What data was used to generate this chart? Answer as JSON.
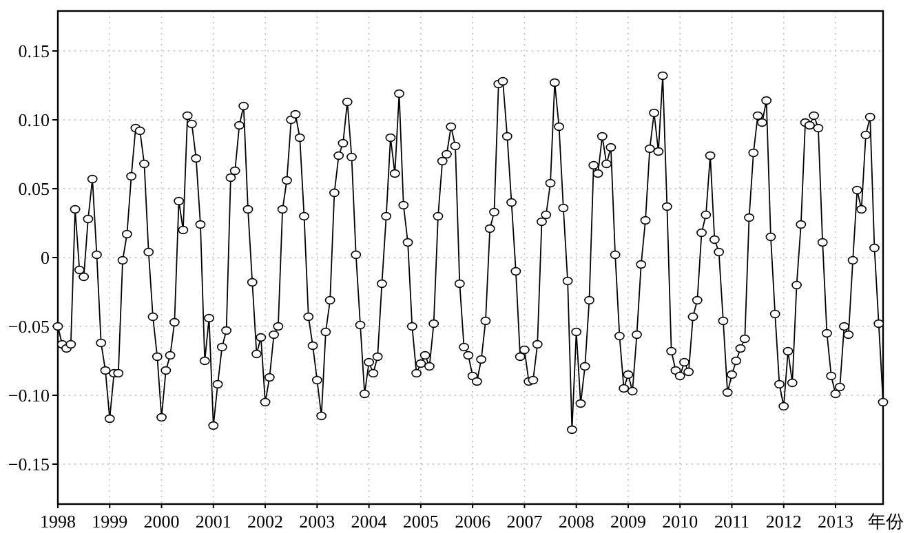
{
  "chart_data": {
    "type": "line",
    "xlabel": "年份",
    "color": "#000000",
    "marker": "circle",
    "grid": true,
    "xlim": [
      "1998-01",
      "2013-12"
    ],
    "ylim": [
      -0.179,
      0.179
    ],
    "xticks": [
      "1998",
      "1999",
      "2000",
      "2001",
      "2002",
      "2003",
      "2004",
      "2005",
      "2006",
      "2007",
      "2008",
      "2009",
      "2010",
      "2011",
      "2012",
      "2013"
    ],
    "yticks": [
      {
        "value": -0.15,
        "label": "−0.15"
      },
      {
        "value": -0.1,
        "label": "−0.10"
      },
      {
        "value": -0.05,
        "label": "−0.05"
      },
      {
        "value": 0,
        "label": "0"
      },
      {
        "value": 0.05,
        "label": "0.05"
      },
      {
        "value": 0.1,
        "label": "0.10"
      },
      {
        "value": 0.15,
        "label": "0.15"
      }
    ],
    "x": [
      "1998-01",
      "1998-02",
      "1998-03",
      "1998-04",
      "1998-05",
      "1998-06",
      "1998-07",
      "1998-08",
      "1998-09",
      "1998-10",
      "1998-11",
      "1998-12",
      "1999-01",
      "1999-02",
      "1999-03",
      "1999-04",
      "1999-05",
      "1999-06",
      "1999-07",
      "1999-08",
      "1999-09",
      "1999-10",
      "1999-11",
      "1999-12",
      "2000-01",
      "2000-02",
      "2000-03",
      "2000-04",
      "2000-05",
      "2000-06",
      "2000-07",
      "2000-08",
      "2000-09",
      "2000-10",
      "2000-11",
      "2000-12",
      "2001-01",
      "2001-02",
      "2001-03",
      "2001-04",
      "2001-05",
      "2001-06",
      "2001-07",
      "2001-08",
      "2001-09",
      "2001-10",
      "2001-11",
      "2001-12",
      "2002-01",
      "2002-02",
      "2002-03",
      "2002-04",
      "2002-05",
      "2002-06",
      "2002-07",
      "2002-08",
      "2002-09",
      "2002-10",
      "2002-11",
      "2002-12",
      "2003-01",
      "2003-02",
      "2003-03",
      "2003-04",
      "2003-05",
      "2003-06",
      "2003-07",
      "2003-08",
      "2003-09",
      "2003-10",
      "2003-11",
      "2003-12",
      "2004-01",
      "2004-02",
      "2004-03",
      "2004-04",
      "2004-05",
      "2004-06",
      "2004-07",
      "2004-08",
      "2004-09",
      "2004-10",
      "2004-11",
      "2004-12",
      "2005-01",
      "2005-02",
      "2005-03",
      "2005-04",
      "2005-05",
      "2005-06",
      "2005-07",
      "2005-08",
      "2005-09",
      "2005-10",
      "2005-11",
      "2005-12",
      "2006-01",
      "2006-02",
      "2006-03",
      "2006-04",
      "2006-05",
      "2006-06",
      "2006-07",
      "2006-08",
      "2006-09",
      "2006-10",
      "2006-11",
      "2006-12",
      "2007-01",
      "2007-02",
      "2007-03",
      "2007-04",
      "2007-05",
      "2007-06",
      "2007-07",
      "2007-08",
      "2007-09",
      "2007-10",
      "2007-11",
      "2007-12",
      "2008-01",
      "2008-02",
      "2008-03",
      "2008-04",
      "2008-05",
      "2008-06",
      "2008-07",
      "2008-08",
      "2008-09",
      "2008-10",
      "2008-11",
      "2008-12",
      "2009-01",
      "2009-02",
      "2009-03",
      "2009-04",
      "2009-05",
      "2009-06",
      "2009-07",
      "2009-08",
      "2009-09",
      "2009-10",
      "2009-11",
      "2009-12",
      "2010-01",
      "2010-02",
      "2010-03",
      "2010-04",
      "2010-05",
      "2010-06",
      "2010-07",
      "2010-08",
      "2010-09",
      "2010-10",
      "2010-11",
      "2010-12",
      "2011-01",
      "2011-02",
      "2011-03",
      "2011-04",
      "2011-05",
      "2011-06",
      "2011-07",
      "2011-08",
      "2011-09",
      "2011-10",
      "2011-11",
      "2011-12",
      "2012-01",
      "2012-02",
      "2012-03",
      "2012-04",
      "2012-05",
      "2012-06",
      "2012-07",
      "2012-08",
      "2012-09",
      "2012-10",
      "2012-11",
      "2012-12",
      "2013-01",
      "2013-02",
      "2013-03",
      "2013-04",
      "2013-05",
      "2013-06",
      "2013-07",
      "2013-08",
      "2013-09",
      "2013-10",
      "2013-11",
      "2013-12"
    ],
    "values": [
      -0.05,
      -0.063,
      -0.066,
      -0.063,
      0.035,
      -0.009,
      -0.014,
      0.028,
      0.057,
      0.002,
      -0.062,
      -0.082,
      -0.117,
      -0.084,
      -0.084,
      -0.002,
      0.017,
      0.059,
      0.094,
      0.092,
      0.068,
      0.004,
      -0.043,
      -0.072,
      -0.116,
      -0.082,
      -0.071,
      -0.047,
      0.041,
      0.02,
      0.103,
      0.097,
      0.072,
      0.024,
      -0.075,
      -0.044,
      -0.122,
      -0.092,
      -0.065,
      -0.053,
      0.058,
      0.063,
      0.096,
      0.11,
      0.035,
      -0.018,
      -0.07,
      -0.058,
      -0.105,
      -0.087,
      -0.056,
      -0.05,
      0.035,
      0.056,
      0.1,
      0.104,
      0.087,
      0.03,
      -0.043,
      -0.064,
      -0.089,
      -0.115,
      -0.054,
      -0.031,
      0.047,
      0.074,
      0.083,
      0.113,
      0.073,
      0.002,
      -0.049,
      -0.099,
      -0.076,
      -0.084,
      -0.072,
      -0.019,
      0.03,
      0.087,
      0.061,
      0.119,
      0.038,
      0.011,
      -0.05,
      -0.084,
      -0.077,
      -0.071,
      -0.079,
      -0.048,
      0.03,
      0.07,
      0.075,
      0.095,
      0.081,
      -0.019,
      -0.065,
      -0.071,
      -0.086,
      -0.09,
      -0.074,
      -0.046,
      0.021,
      0.033,
      0.126,
      0.128,
      0.088,
      0.04,
      -0.01,
      -0.072,
      -0.067,
      -0.09,
      -0.089,
      -0.063,
      0.026,
      0.031,
      0.054,
      0.127,
      0.095,
      0.036,
      -0.017,
      -0.125,
      -0.054,
      -0.106,
      -0.079,
      -0.031,
      0.067,
      0.061,
      0.088,
      0.068,
      0.08,
      0.002,
      -0.057,
      -0.095,
      -0.085,
      -0.097,
      -0.056,
      -0.005,
      0.027,
      0.079,
      0.105,
      0.077,
      0.132,
      0.037,
      -0.068,
      -0.082,
      -0.086,
      -0.076,
      -0.083,
      -0.043,
      -0.031,
      0.018,
      0.031,
      0.074,
      0.013,
      0.004,
      -0.046,
      -0.098,
      -0.085,
      -0.075,
      -0.066,
      -0.059,
      0.029,
      0.076,
      0.103,
      0.098,
      0.114,
      0.015,
      -0.041,
      -0.092,
      -0.108,
      -0.068,
      -0.091,
      -0.02,
      0.024,
      0.098,
      0.096,
      0.103,
      0.094,
      0.011,
      -0.055,
      -0.086,
      -0.099,
      -0.094,
      -0.05,
      -0.056,
      -0.002,
      0.049,
      0.035,
      0.089,
      0.102,
      0.007,
      -0.048,
      -0.105
    ]
  }
}
